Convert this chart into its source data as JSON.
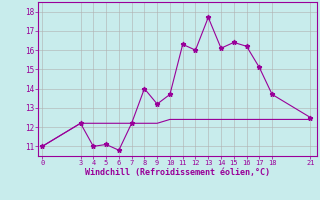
{
  "xlabel": "Windchill (Refroidissement éolien,°C)",
  "background_color": "#c8ecec",
  "line_color": "#990099",
  "grid_color": "#b0b0b0",
  "line1_x": [
    0,
    3,
    4,
    5,
    6,
    7,
    8,
    9,
    10,
    11,
    12,
    13,
    14,
    15,
    16,
    17,
    18,
    21
  ],
  "line1_y": [
    11.0,
    12.2,
    11.0,
    11.1,
    10.8,
    12.2,
    14.0,
    13.2,
    13.7,
    16.3,
    16.0,
    17.7,
    16.1,
    16.4,
    16.2,
    15.1,
    13.7,
    12.5
  ],
  "line2_x": [
    0,
    3,
    4,
    5,
    6,
    7,
    8,
    9,
    10,
    11,
    12,
    13,
    14,
    15,
    16,
    17,
    18,
    21
  ],
  "line2_y": [
    11.0,
    12.2,
    12.2,
    12.2,
    12.2,
    12.2,
    12.2,
    12.2,
    12.4,
    12.4,
    12.4,
    12.4,
    12.4,
    12.4,
    12.4,
    12.4,
    12.4,
    12.4
  ],
  "ylim": [
    10.5,
    18.5
  ],
  "yticks": [
    11,
    12,
    13,
    14,
    15,
    16,
    17,
    18
  ],
  "xticks": [
    0,
    3,
    4,
    5,
    6,
    7,
    8,
    9,
    10,
    11,
    12,
    13,
    14,
    15,
    16,
    17,
    18,
    21
  ],
  "xlim": [
    -0.3,
    21.5
  ]
}
